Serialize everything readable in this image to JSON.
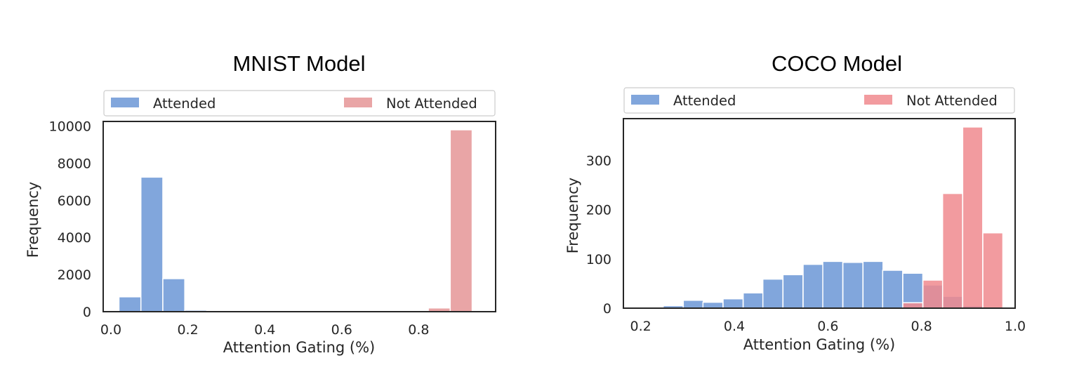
{
  "chart_data": [
    {
      "type": "bar",
      "title": "MNIST Model",
      "xlabel": "Attention Gating (%)",
      "ylabel": "Frequency",
      "xlim": [
        -0.02,
        1.0
      ],
      "ylim": [
        0,
        10250
      ],
      "xticks": [
        "0.0",
        "0.2",
        "0.4",
        "0.6",
        "0.8"
      ],
      "xtick_values": [
        0.0,
        0.2,
        0.4,
        0.6,
        0.8
      ],
      "yticks": [
        "0",
        "2000",
        "4000",
        "6000",
        "8000",
        "10000"
      ],
      "ytick_values": [
        0,
        2000,
        4000,
        6000,
        8000,
        10000
      ],
      "legend": {
        "position": "top",
        "entries": [
          "Attended",
          "Not Attended"
        ]
      },
      "grid": false,
      "bin_width": 0.057,
      "series": [
        {
          "name": "Attended",
          "color": "#6b96d6",
          "bins": [
            [
              0.021,
              800
            ],
            [
              0.078,
              7250
            ],
            [
              0.135,
              1780
            ],
            [
              0.192,
              80
            ],
            [
              0.249,
              15
            ]
          ]
        },
        {
          "name": "Not Attended",
          "color": "#e59596",
          "bins": [
            [
              0.825,
              200
            ],
            [
              0.882,
              9800
            ]
          ]
        }
      ]
    },
    {
      "type": "bar",
      "title": "COCO Model",
      "xlabel": "Attention Gating (%)",
      "ylabel": "Frequency",
      "xlim": [
        0.163,
        1.0
      ],
      "ylim": [
        0,
        385
      ],
      "xticks": [
        "0.2",
        "0.4",
        "0.6",
        "0.8",
        "1.0"
      ],
      "xtick_values": [
        0.2,
        0.4,
        0.6,
        0.8,
        1.0
      ],
      "yticks": [
        "0",
        "100",
        "200",
        "300"
      ],
      "ytick_values": [
        0,
        100,
        200,
        300
      ],
      "legend": {
        "position": "top",
        "entries": [
          "Attended",
          "Not Attended"
        ]
      },
      "grid": false,
      "bin_width": 0.0427,
      "series": [
        {
          "name": "Attended",
          "color": "#6b96d6",
          "bins": [
            [
              0.205,
              1
            ],
            [
              0.248,
              5
            ],
            [
              0.291,
              16
            ],
            [
              0.333,
              12
            ],
            [
              0.376,
              19
            ],
            [
              0.419,
              31
            ],
            [
              0.461,
              59
            ],
            [
              0.504,
              68
            ],
            [
              0.547,
              89
            ],
            [
              0.589,
              95
            ],
            [
              0.632,
              93
            ],
            [
              0.675,
              95
            ],
            [
              0.717,
              77
            ],
            [
              0.76,
              71
            ],
            [
              0.803,
              47
            ],
            [
              0.845,
              24
            ],
            [
              0.888,
              5
            ]
          ]
        },
        {
          "name": "Not Attended",
          "color": "#f08a8e",
          "bins": [
            [
              0.76,
              11
            ],
            [
              0.803,
              57
            ],
            [
              0.845,
              233
            ],
            [
              0.888,
              368
            ],
            [
              0.931,
              153
            ]
          ]
        }
      ]
    }
  ]
}
